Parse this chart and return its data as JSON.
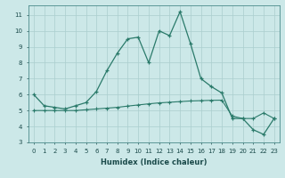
{
  "xlabel": "Humidex (Indice chaleur)",
  "x_values": [
    0,
    1,
    2,
    3,
    4,
    5,
    6,
    7,
    8,
    9,
    10,
    11,
    12,
    13,
    14,
    15,
    16,
    17,
    18,
    19,
    20,
    21,
    22,
    23
  ],
  "line1_y": [
    6.0,
    5.3,
    5.2,
    5.1,
    5.3,
    5.5,
    6.2,
    7.5,
    8.6,
    9.5,
    9.6,
    8.0,
    10.0,
    9.7,
    11.2,
    9.2,
    7.0,
    6.5,
    6.1,
    4.5,
    4.5,
    3.8,
    3.5,
    4.5
  ],
  "line2_y": [
    5.0,
    5.0,
    5.0,
    5.0,
    5.0,
    5.05,
    5.1,
    5.15,
    5.2,
    5.28,
    5.35,
    5.42,
    5.48,
    5.52,
    5.56,
    5.6,
    5.62,
    5.64,
    5.65,
    4.65,
    4.5,
    4.5,
    4.85,
    4.5
  ],
  "line_color": "#2a7a6a",
  "bg_color": "#cce8e8",
  "grid_color": "#aacece",
  "ylim": [
    3,
    11.6
  ],
  "yticks": [
    3,
    4,
    5,
    6,
    7,
    8,
    9,
    10,
    11
  ],
  "xlim": [
    -0.5,
    23.5
  ]
}
